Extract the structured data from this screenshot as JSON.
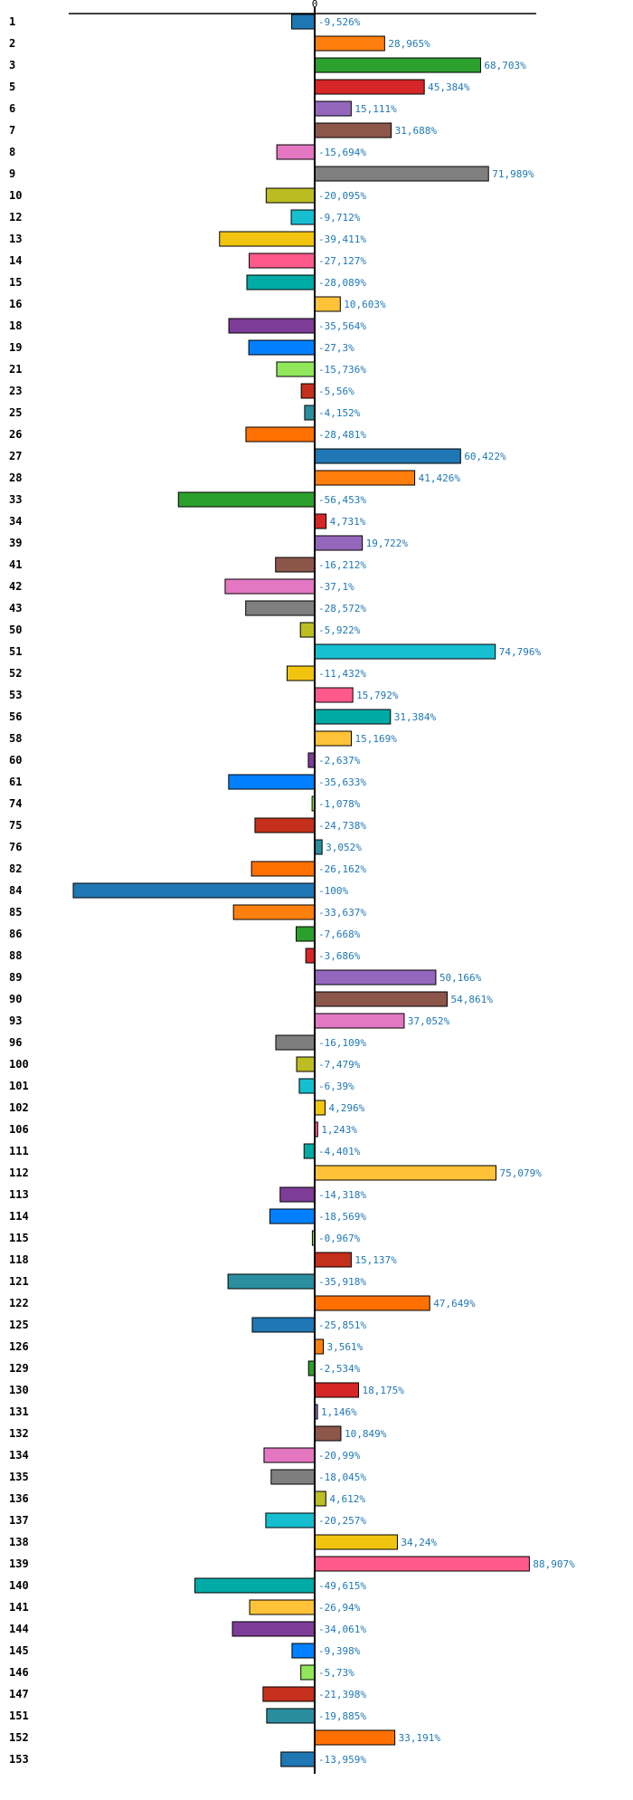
{
  "chart_data": {
    "type": "bar",
    "orientation": "horizontal",
    "title": "",
    "xlabel": "",
    "ylabel": "",
    "xlim": [
      -100,
      100
    ],
    "zero_tick_label": "0",
    "value_suffix": "%",
    "decimal_separator": ",",
    "highlight_category": "42",
    "highlight_color": "#ff0000",
    "value_label_color": "#1f77b4",
    "categories": [
      "1",
      "2",
      "3",
      "5",
      "6",
      "7",
      "8",
      "9",
      "10",
      "12",
      "13",
      "14",
      "15",
      "16",
      "18",
      "19",
      "21",
      "23",
      "25",
      "26",
      "27",
      "28",
      "33",
      "34",
      "39",
      "41",
      "42",
      "43",
      "50",
      "51",
      "52",
      "53",
      "56",
      "58",
      "60",
      "61",
      "74",
      "75",
      "76",
      "82",
      "84",
      "85",
      "86",
      "88",
      "89",
      "90",
      "93",
      "96",
      "100",
      "101",
      "102",
      "106",
      "111",
      "112",
      "113",
      "114",
      "115",
      "118",
      "121",
      "122",
      "125",
      "126",
      "129",
      "130",
      "131",
      "132",
      "134",
      "135",
      "136",
      "137",
      "138",
      "139",
      "140",
      "141",
      "144",
      "145",
      "146",
      "147",
      "151",
      "152",
      "153"
    ],
    "values": [
      -9.526,
      28.965,
      68.703,
      45.384,
      15.111,
      31.688,
      -15.694,
      71.989,
      -20.095,
      -9.712,
      -39.411,
      -27.127,
      -28.089,
      10.603,
      -35.564,
      -27.3,
      -15.736,
      -5.56,
      -4.152,
      -28.481,
      60.422,
      41.426,
      -56.453,
      4.731,
      19.722,
      -16.212,
      -37.1,
      -28.572,
      -5.922,
      74.796,
      -11.432,
      15.792,
      31.384,
      15.169,
      -2.637,
      -35.633,
      -1.078,
      -24.738,
      3.052,
      -26.162,
      -100,
      -33.637,
      -7.668,
      -3.686,
      50.166,
      54.861,
      37.052,
      -16.109,
      -7.479,
      -6.39,
      4.296,
      1.243,
      -4.401,
      75.079,
      -14.318,
      -18.569,
      -0.967,
      15.137,
      -35.918,
      47.649,
      -25.851,
      3.561,
      -2.534,
      18.175,
      1.146,
      10.849,
      -20.99,
      -18.045,
      4.612,
      -20.257,
      34.24,
      88.907,
      -49.615,
      -26.94,
      -34.061,
      -9.398,
      -5.73,
      -21.398,
      -19.885,
      33.191,
      -13.959
    ],
    "value_labels": [
      "-9,526%",
      "28,965%",
      "68,703%",
      "45,384%",
      "15,111%",
      "31,688%",
      "-15,694%",
      "71,989%",
      "-20,095%",
      "-9,712%",
      "-39,411%",
      "-27,127%",
      "-28,089%",
      "10,603%",
      "-35,564%",
      "-27,3%",
      "-15,736%",
      "-5,56%",
      "-4,152%",
      "-28,481%",
      "60,422%",
      "41,426%",
      "-56,453%",
      "4,731%",
      "19,722%",
      "-16,212%",
      "-37,1%",
      "-28,572%",
      "-5,922%",
      "74,796%",
      "-11,432%",
      "15,792%",
      "31,384%",
      "15,169%",
      "-2,637%",
      "-35,633%",
      "-1,078%",
      "-24,738%",
      "3,052%",
      "-26,162%",
      "-100%",
      "-33,637%",
      "-7,668%",
      "-3,686%",
      "50,166%",
      "54,861%",
      "37,052%",
      "-16,109%",
      "-7,479%",
      "-6,39%",
      "4,296%",
      "1,243%",
      "-4,401%",
      "75,079%",
      "-14,318%",
      "-18,569%",
      "-0,967%",
      "15,137%",
      "-35,918%",
      "47,649%",
      "-25,851%",
      "3,561%",
      "-2,534%",
      "18,175%",
      "1,146%",
      "10,849%",
      "-20,99%",
      "-18,045%",
      "4,612%",
      "-20,257%",
      "34,24%",
      "88,907%",
      "-49,615%",
      "-26,94%",
      "-34,061%",
      "-9,398%",
      "-5,73%",
      "-21,398%",
      "-19,885%",
      "33,191%",
      "-13,959%"
    ],
    "palette": [
      "#1f77b4",
      "#ff7f0e",
      "#2ca02c",
      "#d62728",
      "#9467bd",
      "#8c564b",
      "#e377c2",
      "#7f7f7f",
      "#bcbd22",
      "#17becf",
      "#f1c40f",
      "#ff5a8c",
      "#00aaa5",
      "#ffc238",
      "#7d3c98",
      "#0080ff",
      "#90e75a",
      "#c4301c",
      "#2b8e9f",
      "#ff7000"
    ],
    "grid": false,
    "legend": "none"
  }
}
